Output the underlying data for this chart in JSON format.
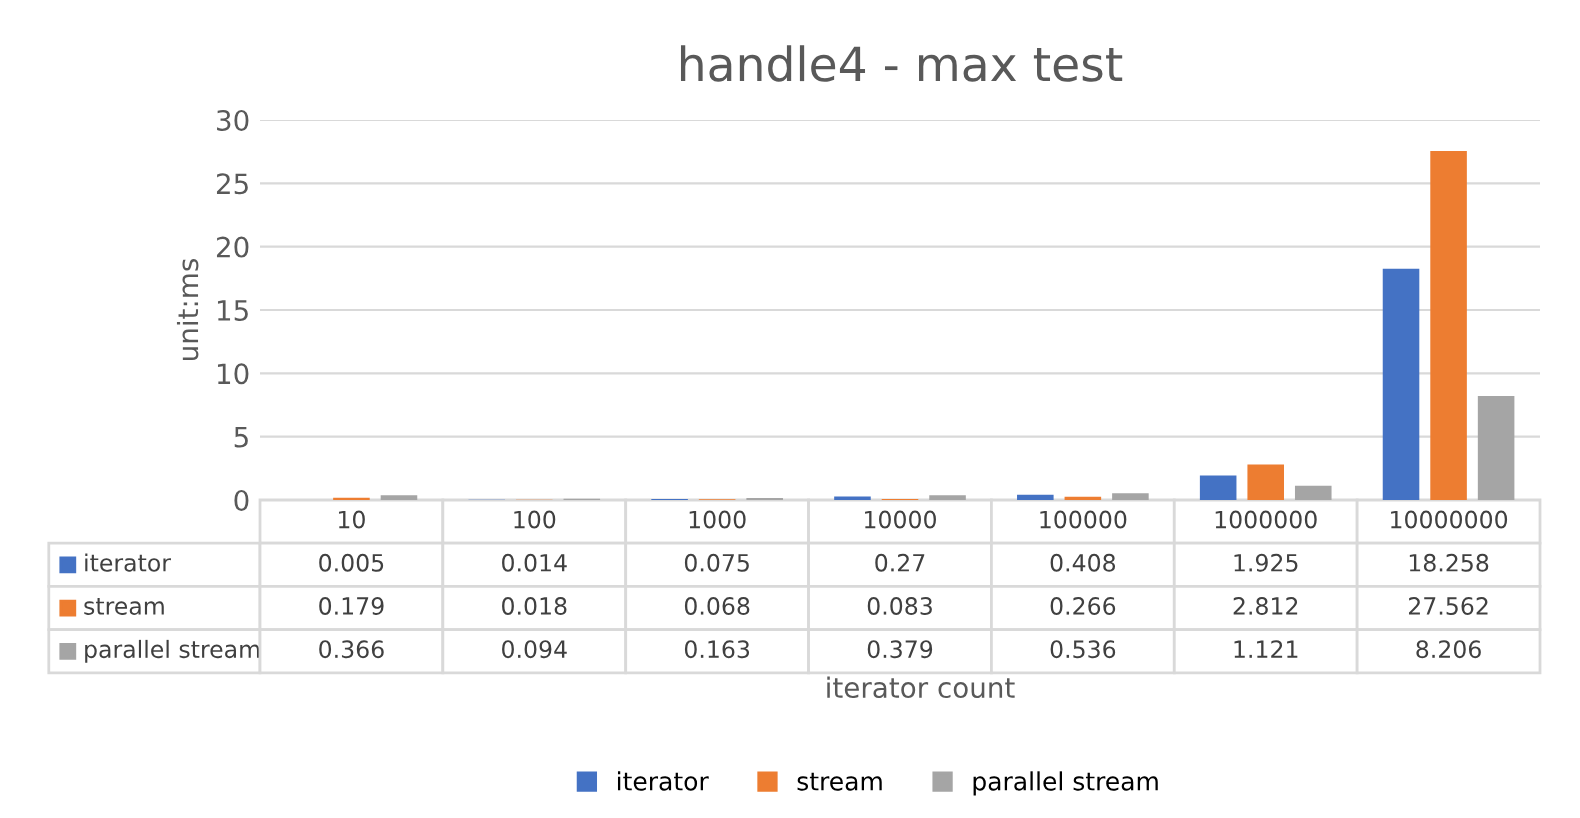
{
  "chart_data": {
    "type": "bar",
    "title": "handle4 - max test",
    "ylabel": "unit:ms",
    "annotations": [
      "iterator count"
    ],
    "categories": [
      "10",
      "100",
      "1000",
      "10000",
      "100000",
      "1000000",
      "10000000"
    ],
    "series": [
      {
        "name": "iterator",
        "color": "#4472c4",
        "values": [
          0.005,
          0.014,
          0.075,
          0.27,
          0.408,
          1.925,
          18.258
        ]
      },
      {
        "name": "stream",
        "color": "#ed7d31",
        "values": [
          0.179,
          0.018,
          0.068,
          0.083,
          0.266,
          2.812,
          27.562
        ]
      },
      {
        "name": "parallel stream",
        "color": "#a5a5a5",
        "values": [
          0.366,
          0.094,
          0.163,
          0.379,
          0.536,
          1.121,
          8.206
        ]
      }
    ],
    "ylim": [
      0,
      30
    ],
    "yticks": [
      0,
      5,
      10,
      15,
      20,
      25,
      30
    ],
    "grid": "y",
    "legend": "bottom",
    "data_labels": true
  }
}
